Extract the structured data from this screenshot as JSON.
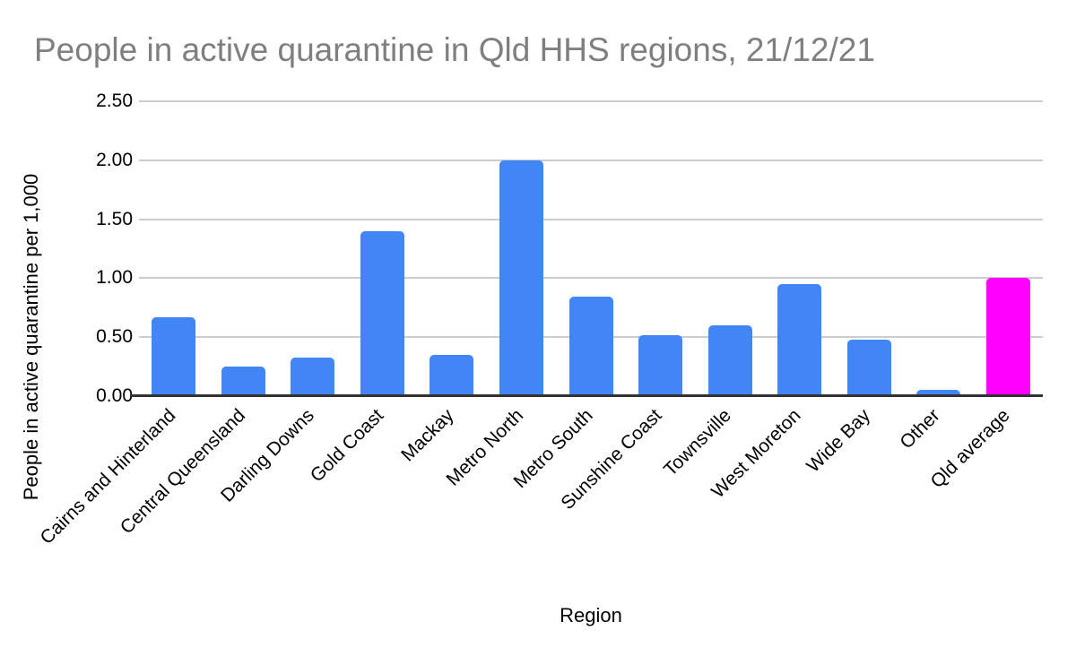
{
  "chart_data": {
    "type": "bar",
    "title": "People in active quarantine in Qld HHS regions, 21/12/21",
    "xlabel": "Region",
    "ylabel": "People in active quarantine per 1,000",
    "categories": [
      "Cairns and Hinterland",
      "Central Queensland",
      "Darling Downs",
      "Gold Coast",
      "Mackay",
      "Metro North",
      "Metro South",
      "Sunshine Coast",
      "Townsville",
      "West Moreton",
      "Wide Bay",
      "Other",
      "Qld average"
    ],
    "values": [
      0.67,
      0.25,
      0.33,
      1.4,
      0.35,
      2.0,
      0.84,
      0.52,
      0.6,
      0.95,
      0.48,
      0.05,
      1.0
    ],
    "ylim": [
      0,
      2.5
    ],
    "ytick_labels": [
      "0.00",
      "0.50",
      "1.00",
      "1.50",
      "2.00",
      "2.50"
    ],
    "grid": "horizontal",
    "legend": "none",
    "colors": {
      "bar": "#4285f4",
      "highlight": "#ff00ff",
      "gridline": "#cccccc",
      "axis_line": "#333333",
      "title": "#7f7f7f",
      "labels": "#000000"
    },
    "highlight_index": 12
  }
}
